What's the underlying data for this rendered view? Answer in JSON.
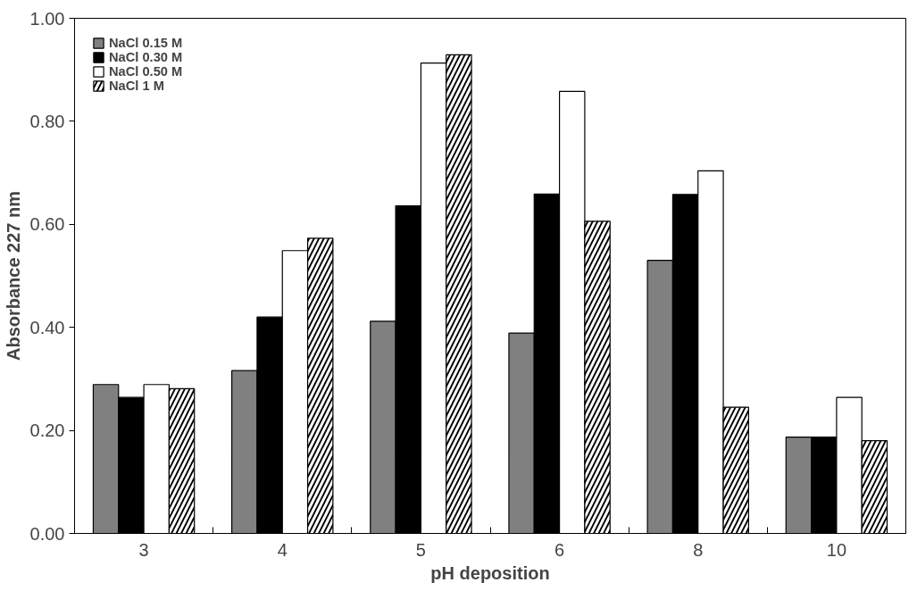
{
  "chart_data": {
    "type": "bar",
    "xlabel": "pH deposition",
    "ylabel": "Absorbance 227 nm",
    "categories": [
      "3",
      "4",
      "5",
      "6",
      "8",
      "10"
    ],
    "series": [
      {
        "name": "NaCl 0.15 M",
        "color": "#808080",
        "values": [
          0.289,
          0.316,
          0.412,
          0.389,
          0.53,
          0.187
        ]
      },
      {
        "name": "NaCl 0.30 M",
        "color": "#000000",
        "values": [
          0.264,
          0.42,
          0.636,
          0.659,
          0.658,
          0.187
        ]
      },
      {
        "name": "NaCl 0.50 M",
        "color": "#ffffff",
        "values": [
          0.289,
          0.549,
          0.913,
          0.858,
          0.704,
          0.264
        ]
      },
      {
        "name": "NaCl 1 M",
        "color": "#000000",
        "values": [
          0.281,
          0.573,
          0.929,
          0.606,
          0.245,
          0.18
        ]
      }
    ],
    "ylim": [
      0,
      1
    ],
    "yticks": [
      {
        "value": 0,
        "label": "0.00"
      },
      {
        "value": 0.2,
        "label": "0.20"
      },
      {
        "value": 0.4,
        "label": "0.40"
      },
      {
        "value": 0.6,
        "label": "0.60"
      },
      {
        "value": 0.8,
        "label": "0.80"
      },
      {
        "value": 1,
        "label": "1.00"
      }
    ],
    "grid": false,
    "legend": "top left"
  }
}
